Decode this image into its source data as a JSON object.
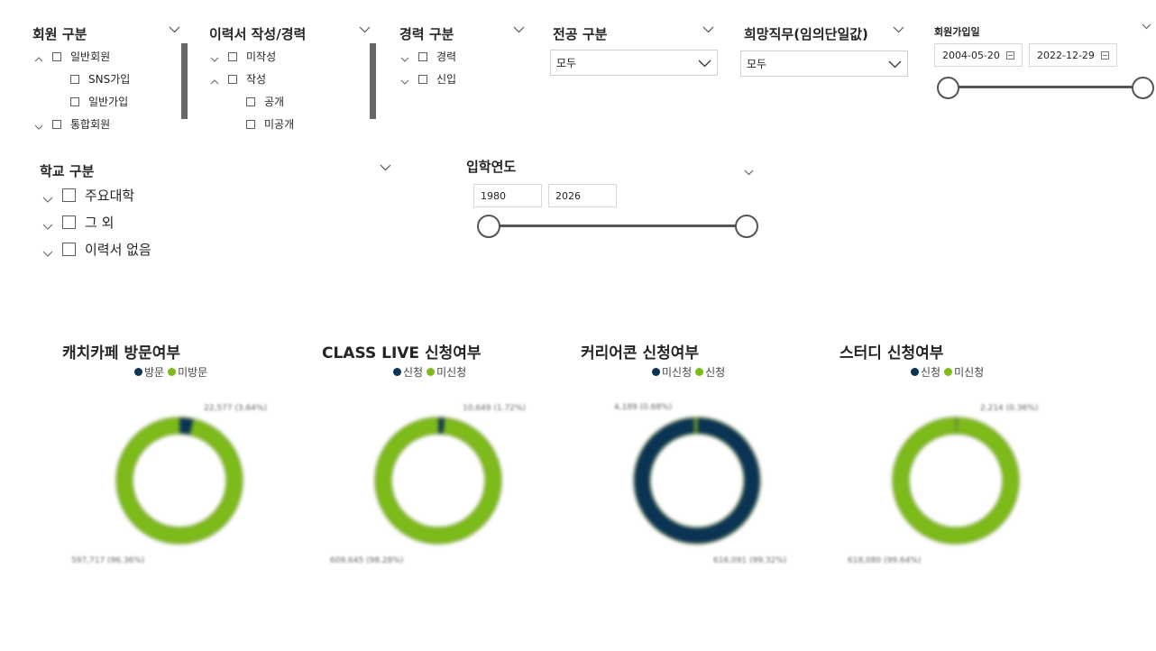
{
  "slicers": {
    "member_type": {
      "title": "회원 구분",
      "items": [
        {
          "label": "일반회원",
          "expander": "up"
        },
        {
          "label": "SNS가입",
          "expander": "none"
        },
        {
          "label": "일반가입",
          "expander": "none"
        },
        {
          "label": "통합회원",
          "expander": "down"
        }
      ]
    },
    "resume": {
      "title": "이력서 작성/경력",
      "items": [
        {
          "label": "미작성",
          "expander": "down"
        },
        {
          "label": "작성",
          "expander": "up"
        },
        {
          "label": "공개",
          "expander": "none"
        },
        {
          "label": "미공개",
          "expander": "none"
        }
      ]
    },
    "career": {
      "title": "경력 구분",
      "items": [
        {
          "label": "경력",
          "expander": "down"
        },
        {
          "label": "신입",
          "expander": "down"
        }
      ]
    },
    "major": {
      "title": "전공 구분",
      "value": "모두"
    },
    "desired_job": {
      "title": "희망직무(임의단일값)",
      "value": "모두"
    },
    "signup_date": {
      "title": "회원가입일",
      "start": "2004-05-20",
      "end": "2022-12-29",
      "range_fraction": [
        0,
        1
      ]
    },
    "school": {
      "title": "학교 구분",
      "items": [
        {
          "label": "주요대학",
          "expander": "down"
        },
        {
          "label": "그 외",
          "expander": "down"
        },
        {
          "label": "이력서 없음",
          "expander": "down"
        }
      ]
    },
    "admission_year": {
      "title": "입학연도",
      "start": "1980",
      "end": "2026",
      "range_fraction": [
        0,
        1
      ]
    }
  },
  "colors": {
    "dark_navy": "#0b3354",
    "green": "#7cbb1a",
    "text": "#252423",
    "track": "#555555"
  },
  "charts": [
    {
      "title": "캐치카페 방문여부",
      "legend": [
        {
          "label": "방문",
          "color": "#0b3354"
        },
        {
          "label": "미방문",
          "color": "#7cbb1a"
        }
      ],
      "chart_data": {
        "type": "pie",
        "categories": [
          "방문",
          "미방문"
        ],
        "values": [
          22577,
          597717
        ],
        "data_labels": [
          "22,577 (3.64%)",
          "597,717 (96.36%)"
        ]
      }
    },
    {
      "title": "CLASS LIVE 신청여부",
      "legend": [
        {
          "label": "신청",
          "color": "#0b3354"
        },
        {
          "label": "미신청",
          "color": "#7cbb1a"
        }
      ],
      "chart_data": {
        "type": "pie",
        "categories": [
          "신청",
          "미신청"
        ],
        "values": [
          10649,
          609645
        ],
        "data_labels": [
          "10,649 (1.72%)",
          "609,645 (98.28%)"
        ]
      }
    },
    {
      "title": "커리어콘 신청여부",
      "legend": [
        {
          "label": "미신청",
          "color": "#0b3354"
        },
        {
          "label": "신청",
          "color": "#7cbb1a"
        }
      ],
      "chart_data": {
        "type": "pie",
        "categories": [
          "미신청",
          "신청"
        ],
        "values": [
          616091,
          4189
        ],
        "data_labels": [
          "616,091 (99.32%)",
          "4,189 (0.68%)"
        ]
      }
    },
    {
      "title": "스터디 신청여부",
      "legend": [
        {
          "label": "신청",
          "color": "#0b3354"
        },
        {
          "label": "미신청",
          "color": "#7cbb1a"
        }
      ],
      "chart_data": {
        "type": "pie",
        "categories": [
          "신청",
          "미신청"
        ],
        "values": [
          2214,
          618080
        ],
        "data_labels": [
          "2,214 (0.36%)",
          "618,080 (99.64%)"
        ]
      }
    }
  ]
}
